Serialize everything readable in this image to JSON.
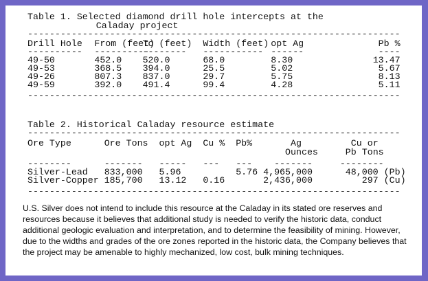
{
  "table1": {
    "title_line1": "Table 1. Selected diamond drill hole intercepts at the",
    "title_line2": "Caladay project",
    "headers": [
      "Drill Hole",
      "From (feet)",
      "To (feet)",
      "Width (feet)",
      "opt Ag",
      "Pb %"
    ],
    "rows": [
      [
        "49-50",
        "452.0",
        "520.0",
        "68.0",
        "8.30",
        "13.47"
      ],
      [
        "49-53",
        "368.5",
        "394.0",
        "25.5",
        "5.02",
        "5.67"
      ],
      [
        "49-26",
        "807.3",
        "837.0",
        "29.7",
        "5.75",
        "8.13"
      ],
      [
        "49-59",
        "392.0",
        "491.4",
        "99.4",
        "4.28",
        "5.11"
      ]
    ]
  },
  "table2": {
    "title": "Table 2. Historical Caladay resource estimate",
    "headers": [
      "Ore Type",
      "Ore Tons",
      "opt Ag",
      "Cu %",
      "Pb%",
      "Ag",
      "Cu or"
    ],
    "headers_line2": [
      "Ounces",
      "Pb Tons"
    ],
    "rows": [
      [
        "Silver-Lead",
        "833,000",
        "5.96",
        "",
        "5.76",
        "4,965,000",
        "48,000 (Pb)"
      ],
      [
        "Silver-Copper",
        "185,700",
        "13.12",
        "0.16",
        "",
        "2,436,000",
        "297 (Cu)"
      ]
    ]
  },
  "paragraph": "U.S. Silver does not intend to include this resource at the Caladay in its stated ore reserves and resources because it believes that additional study is needed to verify the historic data, conduct additional geologic evaluation and interpretation, and to determine the feasibility of mining. However, due to the widths and grades of the ore zones reported in the historic data, the Company believes that the project may be amenable to highly mechanized, low cost, bulk mining techniques.",
  "colors": {
    "border": "#6f66c6",
    "background": "#ffffff",
    "text": "#111111"
  }
}
